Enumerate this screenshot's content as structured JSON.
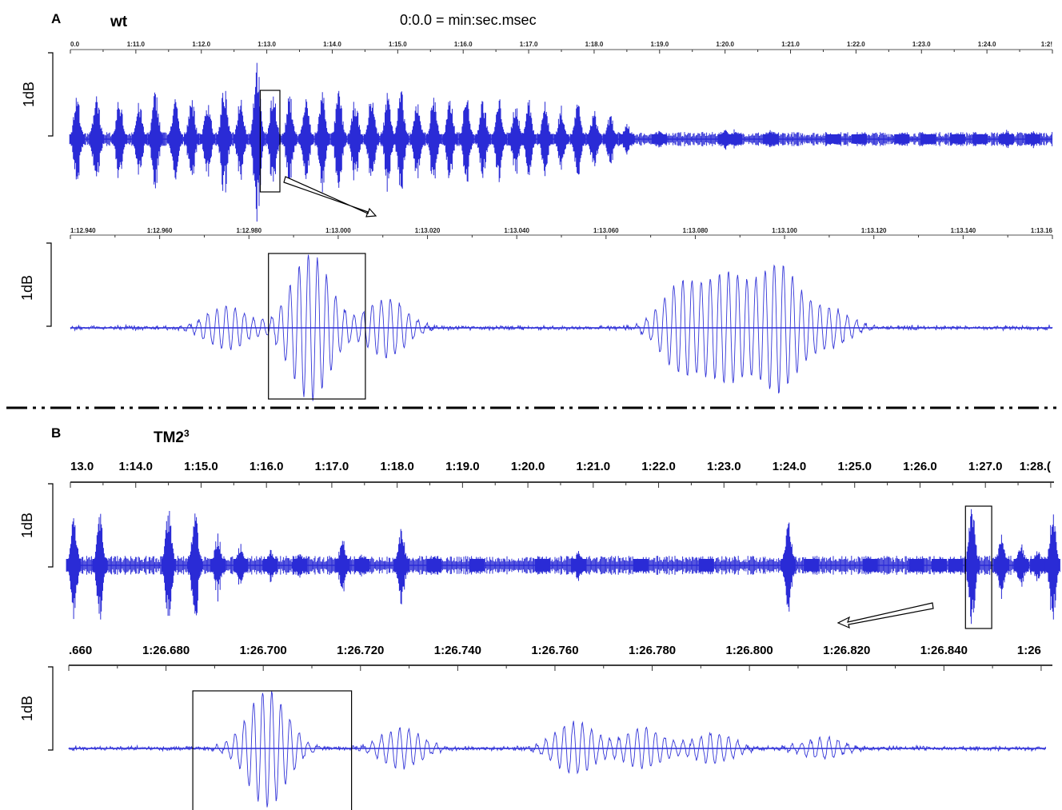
{
  "figure": {
    "panel_a": {
      "letter": "A",
      "genotype": "wt",
      "time_format_note": "0:0.0 = min:sec.msec"
    },
    "panel_b": {
      "letter": "B",
      "genotype_base": "TM2",
      "genotype_sup": "3"
    },
    "colors": {
      "trace": "#2a2bd6",
      "frame": "#000000"
    }
  },
  "chart_data": [
    {
      "id": "a-overview",
      "type": "line",
      "ylabel": "1dB",
      "ticks": [
        "0.0",
        "1:11.0",
        "1:12.0",
        "1:13.0",
        "1:14.0",
        "1:15.0",
        "1:16.0",
        "1:17.0",
        "1:18.0",
        "1:19.0",
        "1:20.0",
        "1:21.0",
        "1:22.0",
        "1:23.0",
        "1:24.0",
        "1:2!"
      ],
      "x_range": [
        70.0,
        85.0
      ],
      "highlight_range": [
        72.9,
        73.2
      ],
      "pulses": [
        [
          70.1,
          0.55
        ],
        [
          70.4,
          0.6
        ],
        [
          70.75,
          0.5
        ],
        [
          71.05,
          0.45
        ],
        [
          71.3,
          0.6
        ],
        [
          71.6,
          0.5
        ],
        [
          71.85,
          0.55
        ],
        [
          72.1,
          0.5
        ],
        [
          72.35,
          0.65
        ],
        [
          72.6,
          0.55
        ],
        [
          72.85,
          1.0
        ],
        [
          73.1,
          0.6
        ],
        [
          73.35,
          0.55
        ],
        [
          73.6,
          0.5
        ],
        [
          73.85,
          0.6
        ],
        [
          74.1,
          0.6
        ],
        [
          74.35,
          0.5
        ],
        [
          74.6,
          0.55
        ],
        [
          74.85,
          0.6
        ],
        [
          75.05,
          0.6
        ],
        [
          75.3,
          0.5
        ],
        [
          75.55,
          0.55
        ],
        [
          75.8,
          0.5
        ],
        [
          76.05,
          0.55
        ],
        [
          76.3,
          0.5
        ],
        [
          76.55,
          0.5
        ],
        [
          76.8,
          0.45
        ],
        [
          77.0,
          0.5
        ],
        [
          77.25,
          0.45
        ],
        [
          77.5,
          0.4
        ],
        [
          77.75,
          0.45
        ],
        [
          78.0,
          0.35
        ],
        [
          78.25,
          0.3
        ],
        [
          78.5,
          0.2
        ],
        [
          79.0,
          0.12
        ],
        [
          80.0,
          0.15
        ],
        [
          80.15,
          0.12
        ],
        [
          80.7,
          0.12
        ],
        [
          81.65,
          0.05
        ],
        [
          82.05,
          0.06
        ],
        [
          82.7,
          0.05
        ],
        [
          83.1,
          0.06
        ],
        [
          83.55,
          0.08
        ],
        [
          83.9,
          0.08
        ],
        [
          84.3,
          0.12
        ],
        [
          84.7,
          0.1
        ]
      ]
    },
    {
      "id": "a-detail",
      "type": "line",
      "ylabel": "1dB",
      "ticks": [
        "1:12.940",
        "1:12.960",
        "1:12.980",
        "1:13.000",
        "1:13.020",
        "1:13.040",
        "1:13.060",
        "1:13.080",
        "1:13.100",
        "1:13.120",
        "1:13.140",
        "1:13.16"
      ],
      "x_range": [
        72.93,
        73.163
      ],
      "highlight_range": [
        72.977,
        73.0
      ],
      "bursts": [
        [
          72.967,
          0.3
        ],
        [
          72.987,
          1.0
        ],
        [
          73.005,
          0.4
        ],
        [
          73.075,
          0.6
        ],
        [
          73.086,
          0.7
        ],
        [
          73.098,
          0.85
        ],
        [
          73.11,
          0.25
        ]
      ]
    },
    {
      "id": "b-overview",
      "type": "line",
      "ylabel": "1dB",
      "ticks": [
        "13.0",
        "1:14.0",
        "1:15.0",
        "1:16.0",
        "1:17.0",
        "1:18.0",
        "1:19.0",
        "1:20.0",
        "1:21.0",
        "1:22.0",
        "1:23.0",
        "1:24.0",
        "1:25.0",
        "1:26.0",
        "1:27.0",
        "1:28.("
      ],
      "x_range": [
        73.0,
        88.0
      ],
      "highlight_range": [
        86.65,
        87.05
      ],
      "pulses": [
        [
          73.05,
          0.75
        ],
        [
          73.45,
          0.85
        ],
        [
          74.5,
          0.9
        ],
        [
          74.9,
          0.85
        ],
        [
          75.25,
          0.5
        ],
        [
          75.6,
          0.35
        ],
        [
          76.05,
          0.25
        ],
        [
          76.5,
          0.2
        ],
        [
          77.15,
          0.45
        ],
        [
          77.45,
          0.2
        ],
        [
          78.05,
          0.6
        ],
        [
          78.55,
          0.15
        ],
        [
          79.2,
          0.08
        ],
        [
          80.2,
          0.05
        ],
        [
          80.75,
          0.25
        ],
        [
          81.7,
          0.05
        ],
        [
          82.7,
          0.05
        ],
        [
          83.95,
          0.7
        ],
        [
          84.3,
          0.1
        ],
        [
          85.2,
          0.08
        ],
        [
          85.9,
          0.1
        ],
        [
          86.25,
          0.08
        ],
        [
          86.5,
          0.15
        ],
        [
          86.75,
          0.95
        ],
        [
          87.2,
          0.5
        ],
        [
          87.5,
          0.35
        ],
        [
          87.75,
          0.25
        ],
        [
          87.98,
          0.85
        ]
      ]
    },
    {
      "id": "b-detail",
      "type": "line",
      "ylabel": "1dB",
      "ticks": [
        ".660",
        "1:26.680",
        "1:26.700",
        "1:26.720",
        "1:26.740",
        "1:26.760",
        "1:26.780",
        "1:26.800",
        "1:26.820",
        "1:26.840",
        "1:26"
      ],
      "x_range": [
        86.66,
        86.857
      ],
      "highlight_range": [
        86.685,
        86.717
      ],
      "bursts": [
        [
          86.7,
          1.0
        ],
        [
          86.727,
          0.35
        ],
        [
          86.762,
          0.45
        ],
        [
          86.776,
          0.35
        ],
        [
          86.79,
          0.25
        ],
        [
          86.812,
          0.18
        ]
      ]
    }
  ]
}
